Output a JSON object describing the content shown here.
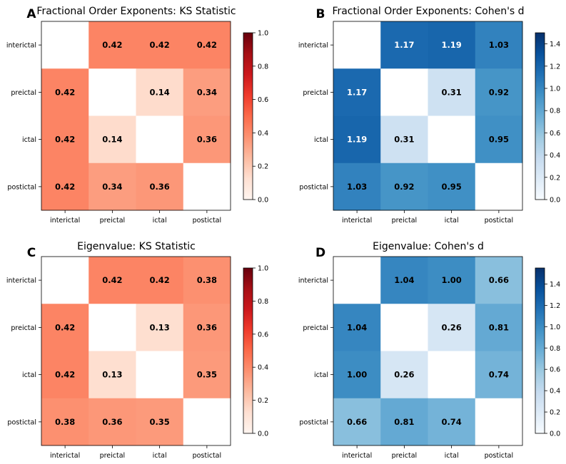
{
  "colors": {
    "reds": [
      "#fff5f0",
      "#fee0d2",
      "#fcbba1",
      "#fc9272",
      "#fb6a4a",
      "#ef3b2c",
      "#cb181d",
      "#a50f15",
      "#67000d"
    ],
    "blues": [
      "#f7fbff",
      "#deebf7",
      "#c6dbef",
      "#9ecae1",
      "#6baed6",
      "#4292c6",
      "#2171b5",
      "#08519c",
      "#08306b"
    ],
    "diagonal": "#ffffff"
  },
  "chart_data": [
    {
      "type": "heatmap",
      "panel_label": "A",
      "title": "Fractional Order Exponents: KS Statistic",
      "colormap": "reds",
      "categories": [
        "interictal",
        "preictal",
        "ictal",
        "postictal"
      ],
      "values": [
        [
          null,
          0.42,
          0.42,
          0.42
        ],
        [
          0.42,
          null,
          0.14,
          0.34
        ],
        [
          0.42,
          0.14,
          null,
          0.36
        ],
        [
          0.42,
          0.34,
          0.36,
          null
        ]
      ],
      "labels": [
        [
          "",
          "0.42",
          "0.42",
          "0.42"
        ],
        [
          "0.42",
          "",
          "0.14",
          "0.34"
        ],
        [
          "0.42",
          "0.14",
          "",
          "0.36"
        ],
        [
          "0.42",
          "0.34",
          "0.36",
          ""
        ]
      ],
      "clim": [
        0,
        1.0
      ],
      "colorbar_ticks": [
        0.0,
        0.2,
        0.4,
        0.6,
        0.8,
        1.0
      ],
      "colorbar_tick_labels": [
        "0.0",
        "0.2",
        "0.4",
        "0.6",
        "0.8",
        "1.0"
      ]
    },
    {
      "type": "heatmap",
      "panel_label": "B",
      "title": "Fractional Order Exponents: Cohen's d",
      "colormap": "blues",
      "categories": [
        "interictal",
        "preictal",
        "ictal",
        "postictal"
      ],
      "values": [
        [
          null,
          1.17,
          1.19,
          1.03
        ],
        [
          1.17,
          null,
          0.31,
          0.92
        ],
        [
          1.19,
          0.31,
          null,
          0.95
        ],
        [
          1.03,
          0.92,
          0.95,
          null
        ]
      ],
      "labels": [
        [
          "",
          "1.17",
          "1.19",
          "1.03"
        ],
        [
          "1.17",
          "",
          "0.31",
          "0.92"
        ],
        [
          "1.19",
          "0.31",
          "",
          "0.95"
        ],
        [
          "1.03",
          "0.92",
          "0.95",
          ""
        ]
      ],
      "clim": [
        0,
        1.5
      ],
      "colorbar_ticks": [
        0.0,
        0.2,
        0.4,
        0.6,
        0.8,
        1.0,
        1.2,
        1.4
      ],
      "colorbar_tick_labels": [
        "0.0",
        "0.2",
        "0.4",
        "0.6",
        "0.8",
        "1.0",
        "1.2",
        "1.4"
      ]
    },
    {
      "type": "heatmap",
      "panel_label": "C",
      "title": "Eigenvalue: KS Statistic",
      "colormap": "reds",
      "categories": [
        "interictal",
        "preictal",
        "ictal",
        "postictal"
      ],
      "values": [
        [
          null,
          0.42,
          0.42,
          0.38
        ],
        [
          0.42,
          null,
          0.13,
          0.36
        ],
        [
          0.42,
          0.13,
          null,
          0.35
        ],
        [
          0.38,
          0.36,
          0.35,
          null
        ]
      ],
      "labels": [
        [
          "",
          "0.42",
          "0.42",
          "0.38"
        ],
        [
          "0.42",
          "",
          "0.13",
          "0.36"
        ],
        [
          "0.42",
          "0.13",
          "",
          "0.35"
        ],
        [
          "0.38",
          "0.36",
          "0.35",
          ""
        ]
      ],
      "clim": [
        0,
        1.0
      ],
      "colorbar_ticks": [
        0.0,
        0.2,
        0.4,
        0.6,
        0.8,
        1.0
      ],
      "colorbar_tick_labels": [
        "0.0",
        "0.2",
        "0.4",
        "0.6",
        "0.8",
        "1.0"
      ]
    },
    {
      "type": "heatmap",
      "panel_label": "D",
      "title": "Eigenvalue: Cohen's d",
      "colormap": "blues",
      "categories": [
        "interictal",
        "preictal",
        "ictal",
        "postictal"
      ],
      "values": [
        [
          null,
          1.04,
          1.0,
          0.66
        ],
        [
          1.04,
          null,
          0.26,
          0.81
        ],
        [
          1.0,
          0.26,
          null,
          0.74
        ],
        [
          0.66,
          0.81,
          0.74,
          null
        ]
      ],
      "labels": [
        [
          "",
          "1.04",
          "1.00",
          "0.66"
        ],
        [
          "1.04",
          "",
          "0.26",
          "0.81"
        ],
        [
          "1.00",
          "0.26",
          "",
          "0.74"
        ],
        [
          "0.66",
          "0.81",
          "0.74",
          ""
        ]
      ],
      "clim": [
        0,
        1.55
      ],
      "colorbar_ticks": [
        0.0,
        0.2,
        0.4,
        0.6,
        0.8,
        1.0,
        1.2,
        1.4
      ],
      "colorbar_tick_labels": [
        "0.0",
        "0.2",
        "0.4",
        "0.6",
        "0.8",
        "1.0",
        "1.2",
        "1.4"
      ]
    }
  ]
}
